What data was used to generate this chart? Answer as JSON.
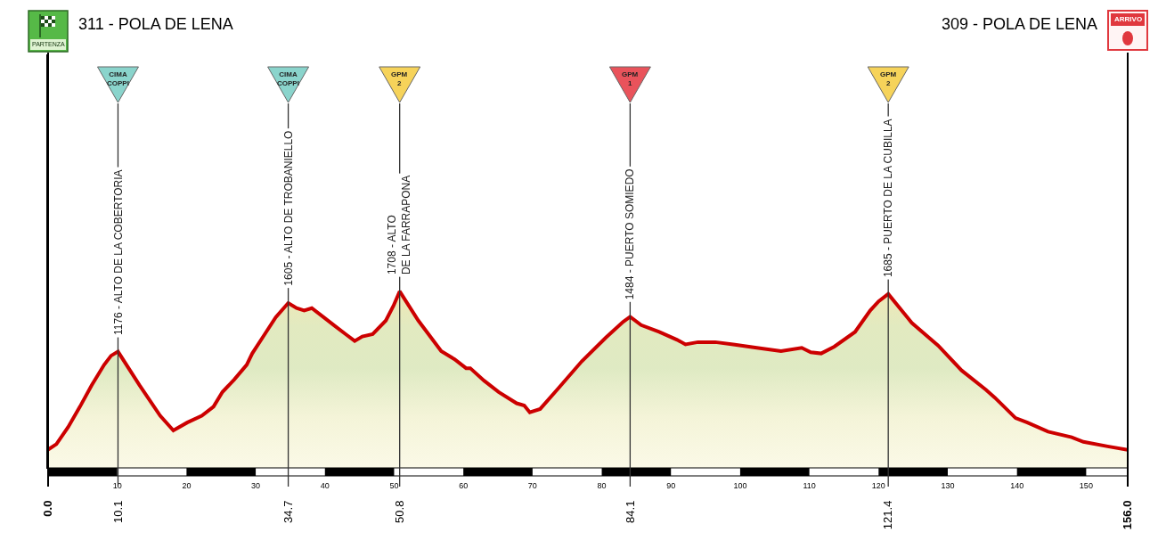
{
  "chart_data": {
    "type": "area",
    "x": [
      0,
      1.2,
      2.9,
      4.6,
      6.3,
      8.1,
      9.1,
      10.1,
      13.2,
      16.2,
      18.1,
      20.1,
      22.2,
      23.9,
      25.2,
      26.9,
      28.7,
      29.5,
      31.2,
      32.9,
      34.7,
      35.9,
      37.0,
      38.1,
      39.8,
      41.5,
      43.0,
      44.3,
      45.4,
      46.9,
      48.8,
      49.9,
      50.8,
      53.5,
      56.8,
      58.7,
      60.4,
      61.0,
      63.0,
      65.1,
      67.7,
      68.8,
      69.6,
      71.1,
      73.7,
      77.1,
      80.6,
      83.1,
      84.1,
      85.7,
      88.3,
      90.9,
      92.1,
      93.9,
      96.4,
      99.0,
      102.4,
      105.9,
      108.9,
      110.2,
      111.7,
      113.6,
      116.6,
      118.8,
      120.0,
      121.4,
      124.8,
      128.6,
      132.0,
      135.5,
      136.8,
      139.8,
      141.5,
      144.5,
      147.9,
      149.6,
      153.1,
      156.0
    ],
    "series": [
      {
        "color": "#cc0000",
        "values": [
          311,
          360,
          510,
          690,
          880,
          1060,
          1140,
          1176,
          880,
          610,
          480,
          550,
          610,
          690,
          820,
          930,
          1060,
          1160,
          1320,
          1480,
          1605,
          1560,
          1540,
          1560,
          1480,
          1400,
          1330,
          1270,
          1310,
          1330,
          1450,
          1580,
          1708,
          1450,
          1180,
          1110,
          1030,
          1030,
          920,
          820,
          720,
          700,
          640,
          670,
          850,
          1090,
          1300,
          1440,
          1484,
          1410,
          1350,
          1280,
          1240,
          1260,
          1260,
          1240,
          1210,
          1180,
          1210,
          1170,
          1160,
          1220,
          1350,
          1540,
          1620,
          1685,
          1430,
          1230,
          1010,
          840,
          770,
          590,
          550,
          470,
          420,
          380,
          340,
          309
        ],
        "value_labels": [
          null,
          null,
          null,
          null,
          null,
          null,
          null,
          "1176 - ALTO DE LA COBERTORIA",
          null,
          null,
          null,
          null,
          null,
          null,
          null,
          null,
          null,
          null,
          null,
          null,
          "1605 - ALTO DE TROBANIELLO",
          null,
          null,
          null,
          null,
          null,
          null,
          null,
          null,
          null,
          null,
          null,
          "1708 - ALTO\nDE LA FARRAPONA",
          null,
          null,
          null,
          null,
          null,
          null,
          null,
          null,
          null,
          null,
          null,
          null,
          null,
          null,
          null,
          "1484 - PUERTO SOMIEDO",
          null,
          null,
          null,
          null,
          null,
          null,
          null,
          null,
          null,
          null,
          null,
          null,
          null,
          null,
          null,
          null,
          "1685 - PUERTO DE LA CUBILLA",
          null,
          null,
          null,
          null,
          null,
          null,
          null,
          null,
          null,
          null,
          null,
          null
        ]
      }
    ],
    "xlim": [
      0,
      156
    ],
    "xticks": [
      10,
      20,
      30,
      40,
      50,
      60,
      70,
      80,
      90,
      100,
      110,
      120,
      130,
      140,
      150
    ],
    "x2lim": [
      0,
      156
    ],
    "x2ticks": [
      {
        "value": 0,
        "label": "0.0"
      },
      10.1,
      34.7,
      50.8,
      84.1,
      121.4,
      {
        "value": 156,
        "label": "156.0"
      }
    ],
    "ylim": [
      150,
      3800
    ],
    "tick_labels": "x",
    "ref_lines": [
      {
        "axis": "x",
        "value": 0,
        "label": "311 - POLA DE LENA"
      },
      {
        "axis": "x",
        "value": 10.1
      },
      {
        "axis": "x",
        "value": 34.7
      },
      {
        "axis": "x",
        "value": 50.8
      },
      {
        "axis": "x",
        "value": 84.1
      },
      {
        "axis": "x",
        "value": 121.4
      },
      {
        "axis": "x",
        "value": 156,
        "label": "309 - POLA DE LENA"
      }
    ],
    "annotations": [
      "PARTENZA",
      "CIMA\nCOPPI",
      "CIMA\nCOPPI",
      "GPM\n2",
      "GPM\n1",
      "GPM\n2",
      "ARRIVO"
    ]
  }
}
